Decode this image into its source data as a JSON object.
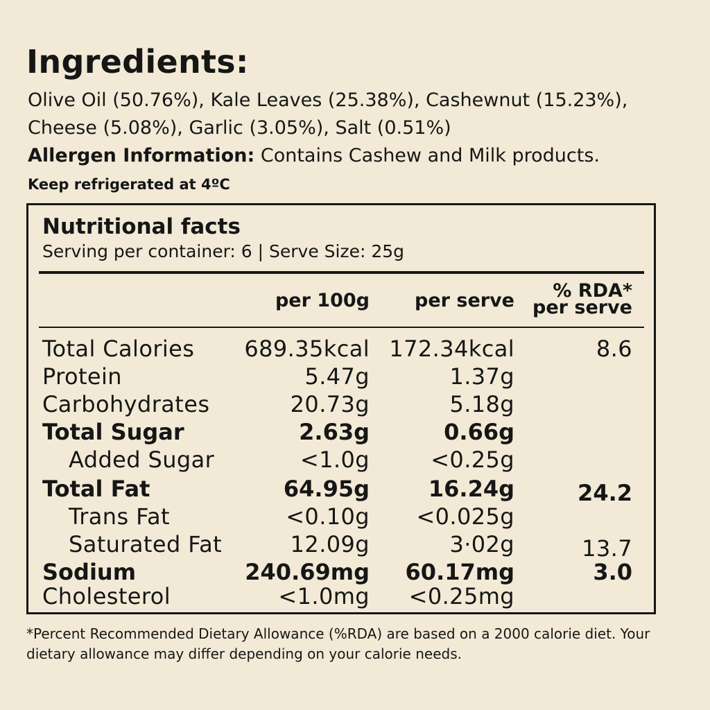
{
  "ingredients": {
    "heading": "Ingredients:",
    "line1": "Olive Oil (50.76%), Kale Leaves (25.38%), Cashewnut (15.23%),",
    "line2": "Cheese (5.08%), Garlic (3.05%), Salt (0.51%)"
  },
  "allergen": {
    "label": "Allergen Information:",
    "text": " Contains Cashew and Milk products."
  },
  "storage": "Keep refrigerated at 4ºC",
  "nutrition": {
    "title": "Nutritional facts",
    "serving": "Serving per container: 6 | Serve Size: 25g",
    "columns": {
      "per_100g": "per 100g",
      "per_serve": "per serve",
      "rda_line1": "% RDA*",
      "rda_line2": "per serve"
    },
    "rows": [
      {
        "name": "Total Calories",
        "per_100g": "689.35kcal",
        "per_serve": "172.34kcal",
        "rda": "8.6",
        "bold": false,
        "indent": false
      },
      {
        "name": "Protein",
        "per_100g": "5.47g",
        "per_serve": "1.37g",
        "rda": "",
        "bold": false,
        "indent": false
      },
      {
        "name": "Carbohydrates",
        "per_100g": "20.73g",
        "per_serve": "5.18g",
        "rda": "",
        "bold": false,
        "indent": false
      },
      {
        "name": "Total Sugar",
        "per_100g": "2.63g",
        "per_serve": "0.66g",
        "rda": "",
        "bold": true,
        "indent": false
      },
      {
        "name": "Added Sugar",
        "per_100g": "<1.0g",
        "per_serve": "<0.25g",
        "rda": "",
        "bold": false,
        "indent": true
      },
      {
        "name": "Total Fat",
        "per_100g": "64.95g",
        "per_serve": "16.24g",
        "rda": "24.2",
        "bold": true,
        "indent": false
      },
      {
        "name": "Trans Fat",
        "per_100g": "<0.10g",
        "per_serve": "<0.025g",
        "rda": "",
        "bold": false,
        "indent": true
      },
      {
        "name": "Saturated Fat",
        "per_100g": "12.09g",
        "per_serve": "3·02g",
        "rda": "13.7",
        "bold": false,
        "indent": true
      },
      {
        "name": "Sodium",
        "per_100g": "240.69mg",
        "per_serve": "60.17mg",
        "rda": "3.0",
        "bold": true,
        "indent": false
      },
      {
        "name": "Cholesterol",
        "per_100g": "<1.0mg",
        "per_serve": "<0.25mg",
        "rda": "",
        "bold": false,
        "indent": false
      }
    ]
  },
  "footnote": "*Percent Recommended Dietary Allowance (%RDA) are based on a 2000 calorie diet. Your dietary allowance may differ depending on your calorie needs."
}
